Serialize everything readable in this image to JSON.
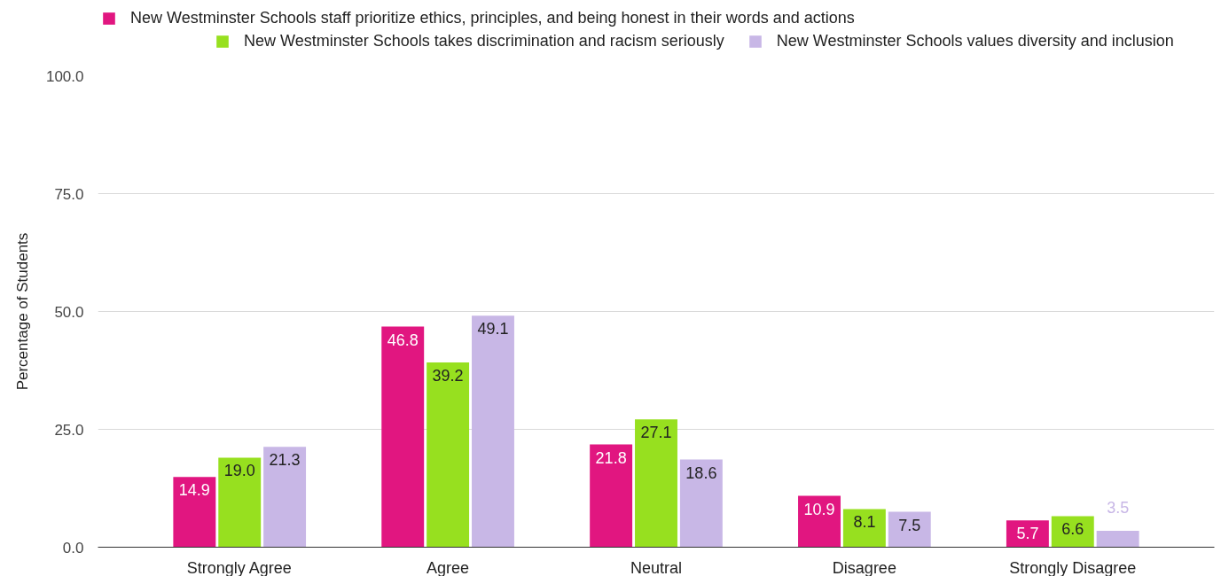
{
  "chart_data": {
    "type": "bar",
    "ylabel": "Percentage of Students",
    "categories": [
      "Strongly Agree",
      "Agree",
      "Neutral",
      "Disagree",
      "Strongly Disagree"
    ],
    "series": [
      {
        "name": "New Westminster Schools staff prioritize ethics, principles, and being honest in their words and actions",
        "color": "#e11680",
        "values": [
          14.9,
          46.8,
          21.8,
          10.9,
          5.7
        ],
        "value_labels": [
          "14.9",
          "46.8",
          "21.8",
          "10.9",
          "5.7"
        ]
      },
      {
        "name": "New Westminster Schools takes discrimination and racism seriously",
        "color": "#97e01f",
        "values": [
          19.0,
          39.2,
          27.1,
          8.1,
          6.6
        ],
        "value_labels": [
          "19.0",
          "39.2",
          "27.1",
          "8.1",
          "6.6"
        ]
      },
      {
        "name": "New Westminster Schools values diversity and inclusion",
        "color": "#c8b7e6",
        "values": [
          21.3,
          49.1,
          18.6,
          7.5,
          3.5
        ],
        "value_labels": [
          "21.3",
          "49.1",
          "18.6",
          "7.5",
          "3.5"
        ]
      }
    ],
    "ylim": [
      0,
      100
    ],
    "yticks": [
      {
        "value": 0,
        "label": "0.0"
      },
      {
        "value": 25,
        "label": "25.0"
      },
      {
        "value": 50,
        "label": "50.0"
      },
      {
        "value": 75,
        "label": "75.0"
      },
      {
        "value": 100,
        "label": "100.0"
      }
    ],
    "grid": "y",
    "legend": "top"
  }
}
